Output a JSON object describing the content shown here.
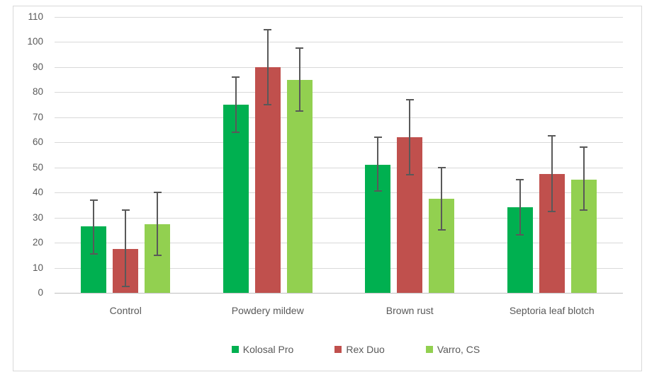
{
  "chart_data": {
    "type": "bar",
    "title": "",
    "xlabel": "",
    "ylabel": "",
    "categories": [
      "Control",
      "Powdery mildew",
      "Brown rust",
      "Septoria leaf blotch"
    ],
    "series": [
      {
        "name": "Kolosal Pro",
        "color": "#00B050",
        "values": [
          26.5,
          75,
          51,
          34
        ],
        "error_low": [
          15.5,
          64,
          40.5,
          23
        ],
        "error_high": [
          37,
          86,
          62,
          45
        ]
      },
      {
        "name": "Rex Duo",
        "color": "#C0504D",
        "values": [
          17.5,
          90,
          62,
          47.5
        ],
        "error_low": [
          2.5,
          75,
          47,
          32.5
        ],
        "error_high": [
          33,
          105,
          77,
          62.5
        ]
      },
      {
        "name": "Varro, CS",
        "color": "#92D050",
        "values": [
          27.5,
          85,
          37.5,
          45
        ],
        "error_low": [
          15,
          72.5,
          25,
          33
        ],
        "error_high": [
          40,
          97.5,
          50,
          58
        ]
      }
    ],
    "ylim": [
      0,
      110
    ],
    "ytick_step": 10,
    "grid": true,
    "legend_position": "bottom",
    "error_bars": true
  },
  "style": {
    "gridline_color": "#d9d9d9",
    "axis_line_color": "#bfbfbf",
    "error_bar_color": "#595959",
    "text_color": "#595959",
    "frame_border_color": "#d9d9d9",
    "background_color": "#ffffff"
  }
}
